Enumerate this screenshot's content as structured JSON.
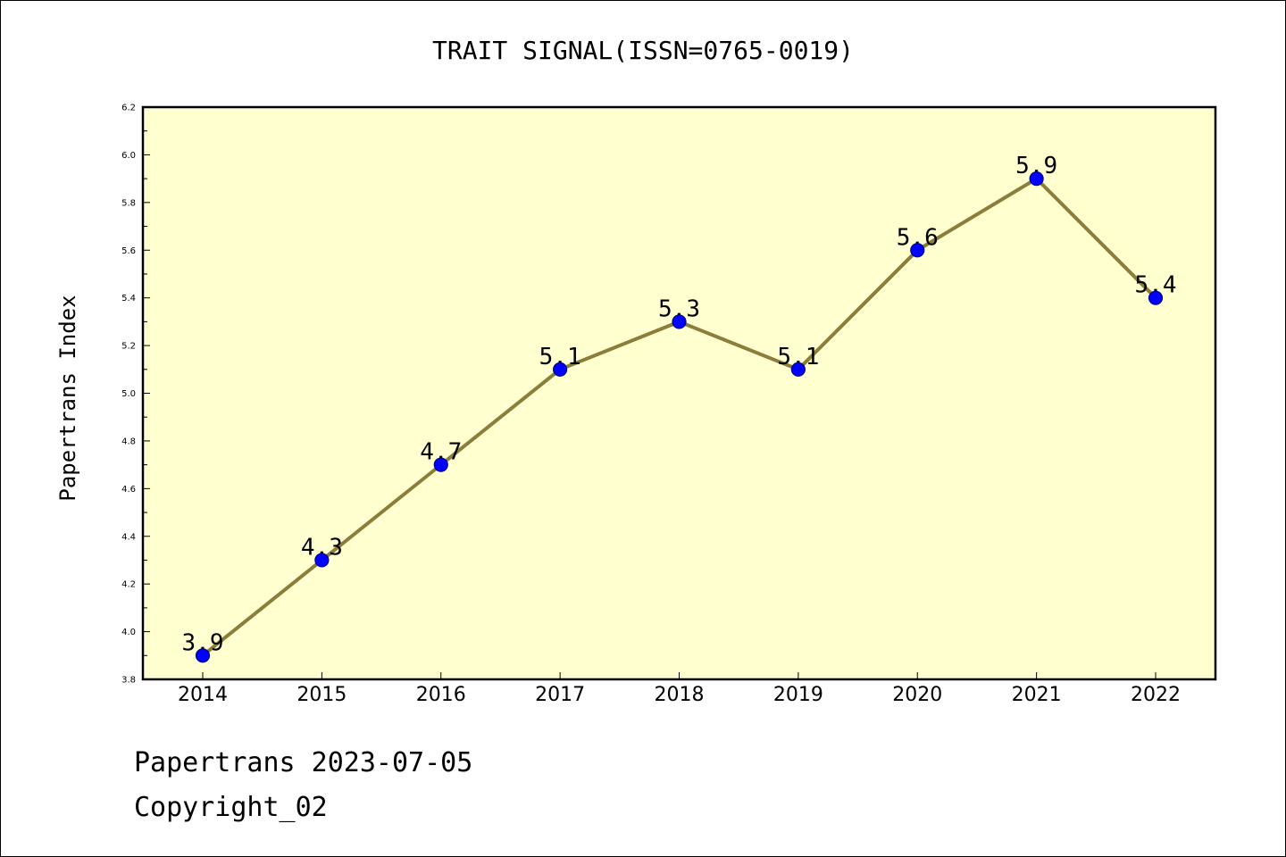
{
  "chart_data": {
    "type": "line",
    "title": "TRAIT SIGNAL(ISSN=0765-0019)",
    "xlabel": "",
    "ylabel": "Papertrans Index",
    "categories": [
      "2014",
      "2015",
      "2016",
      "2017",
      "2018",
      "2019",
      "2020",
      "2021",
      "2022"
    ],
    "series": [
      {
        "values": [
          3.9,
          4.3,
          4.7,
          5.1,
          5.3,
          5.1,
          5.6,
          5.9,
          5.4
        ]
      }
    ],
    "data_labels": [
      "3.9",
      "4.3",
      "4.7",
      "5.1",
      "5.3",
      "5.1",
      "5.6",
      "5.9",
      "5.4"
    ],
    "ylim": [
      3.8,
      6.2
    ],
    "yticks": [
      "3.8",
      "4.0",
      "4.2",
      "4.4",
      "4.6",
      "4.8",
      "5.0",
      "5.2",
      "5.4",
      "5.6",
      "5.8",
      "6.0",
      "6.2"
    ],
    "grid": false,
    "legend": "none",
    "colors": {
      "plot_background": "#ffffd0",
      "line": "#8b7d3a",
      "marker": "#0000ff",
      "marker_edge": "#00008b"
    }
  },
  "footer": {
    "line1": "Papertrans 2023-07-05",
    "line2": "Copyright_02"
  }
}
